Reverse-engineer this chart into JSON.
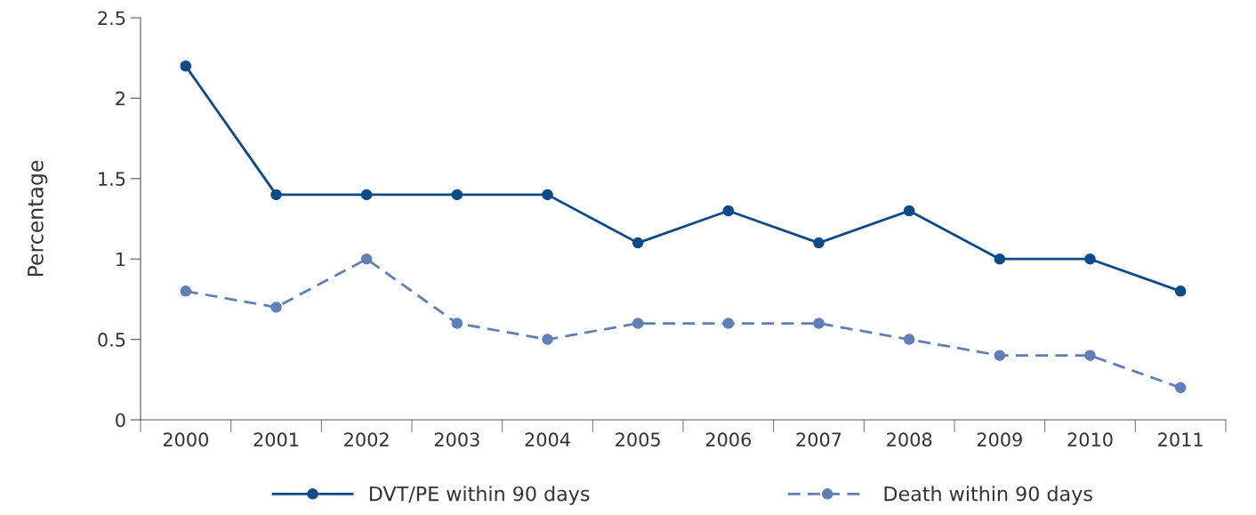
{
  "chart_data": {
    "type": "line",
    "ylabel": "Percentage",
    "categories": [
      "2000",
      "2001",
      "2002",
      "2003",
      "2004",
      "2005",
      "2006",
      "2007",
      "2008",
      "2009",
      "2010",
      "2011"
    ],
    "series": [
      {
        "name": "DVT/PE within 90 days",
        "color": "#0d4a8a",
        "line_style": "solid",
        "values": [
          2.2,
          1.4,
          1.4,
          1.4,
          1.4,
          1.1,
          1.3,
          1.1,
          1.3,
          1.0,
          1.0,
          0.8
        ]
      },
      {
        "name": "Death within 90 days",
        "color": "#5f7fb6",
        "line_style": "dashed",
        "values": [
          0.8,
          0.7,
          1.0,
          0.6,
          0.5,
          0.6,
          0.6,
          0.6,
          0.5,
          0.4,
          0.4,
          0.2
        ]
      }
    ],
    "ylim": [
      0,
      2.5
    ],
    "yticks": [
      0,
      0.5,
      1,
      1.5,
      2,
      2.5
    ],
    "marker": "circle",
    "legend": "bottom",
    "grid": false
  }
}
